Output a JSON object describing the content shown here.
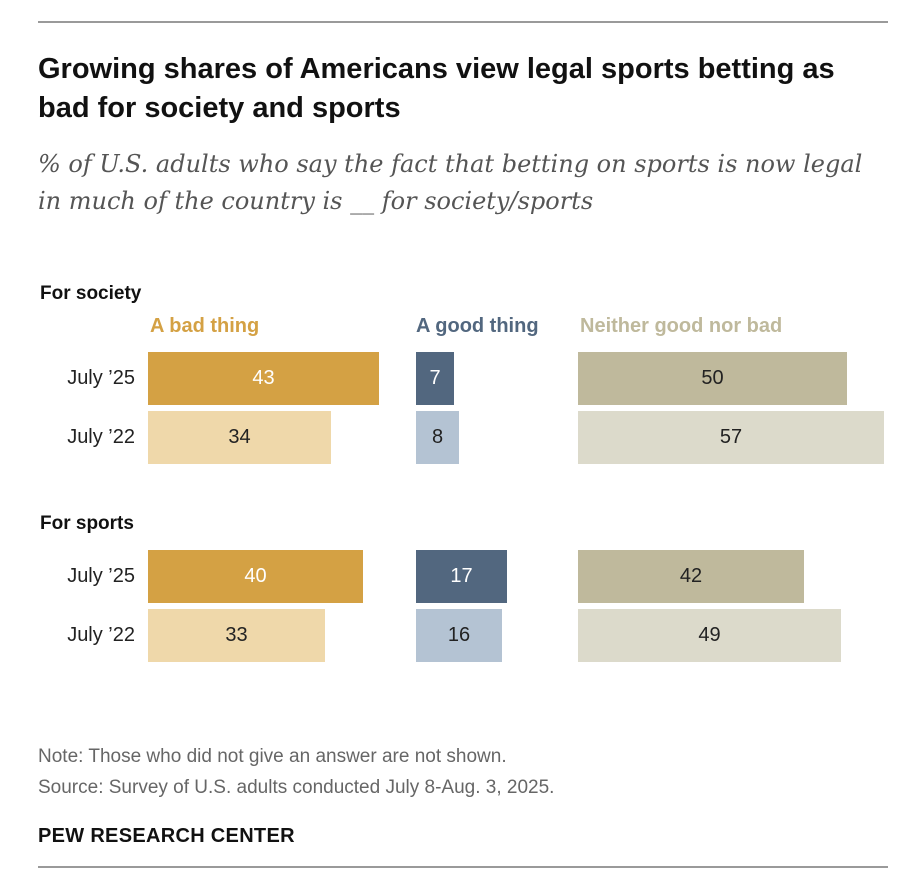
{
  "title": "Growing shares of Americans view legal sports betting as bad for society and sports",
  "subtitle": "% of U.S. adults who say the fact that betting on sports is now legal in much of the country is __ for society/sports",
  "note": "Note: Those who did not give an answer are not shown.",
  "source": "Source: Survey of U.S. adults conducted July 8-Aug. 3, 2025.",
  "brand": "PEW RESEARCH CENTER",
  "chart_data": {
    "type": "bar",
    "orientation": "horizontal",
    "legend": [
      "A bad thing",
      "A good thing",
      "Neither good nor bad"
    ],
    "colors": {
      "A bad thing": [
        "#D4A144",
        "#EFD8AA"
      ],
      "A good thing": [
        "#52677F",
        "#B4C3D3"
      ],
      "Neither good nor bad": [
        "#BFB99C",
        "#DCDACB"
      ],
      "legend_text": [
        "#D4A144",
        "#52677F",
        "#BFB99C"
      ]
    },
    "groups": [
      {
        "name": "For society",
        "rows": [
          {
            "label": "July ’25",
            "values": [
              43,
              7,
              50
            ]
          },
          {
            "label": "July ’22",
            "values": [
              34,
              8,
              57
            ]
          }
        ]
      },
      {
        "name": "For sports",
        "rows": [
          {
            "label": "July ’25",
            "values": [
              40,
              17,
              42
            ]
          },
          {
            "label": "July ’22",
            "values": [
              33,
              16,
              49
            ]
          }
        ]
      }
    ]
  }
}
